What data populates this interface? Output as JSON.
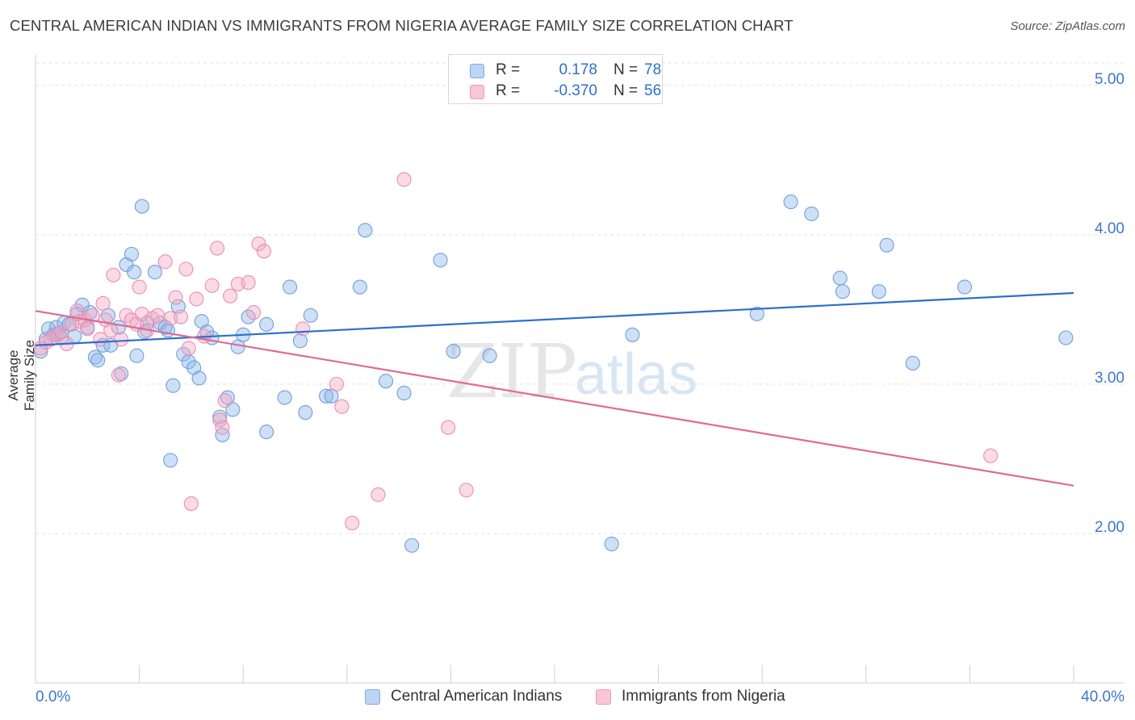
{
  "title": "CENTRAL AMERICAN INDIAN VS IMMIGRANTS FROM NIGERIA AVERAGE FAMILY SIZE CORRELATION CHART",
  "source": "Source: ZipAtlas.com",
  "watermark": {
    "part1": "ZIP",
    "part2": "atlas"
  },
  "legend_top": {
    "rows": [
      {
        "r_label": "R =",
        "r_value": "0.178",
        "n_label": "N =",
        "n_value": "78"
      },
      {
        "r_label": "R =",
        "r_value": "-0.370",
        "n_label": "N =",
        "n_value": "56"
      }
    ]
  },
  "legend_bottom": {
    "items": [
      {
        "label": "Central American Indians"
      },
      {
        "label": "Immigrants from Nigeria"
      }
    ]
  },
  "chart_data": {
    "type": "scatter",
    "title": "CENTRAL AMERICAN INDIAN VS IMMIGRANTS FROM NIGERIA AVERAGE FAMILY SIZE CORRELATION CHART",
    "xlabel": "",
    "ylabel": "Average Family Size",
    "xlim": [
      0,
      40
    ],
    "ylim": [
      1.0,
      5.15
    ],
    "x_tick_labels": [
      "0.0%",
      "40.0%"
    ],
    "y_ticks": [
      2.0,
      3.0,
      4.0,
      5.0
    ],
    "y_tick_labels": [
      "2.00",
      "3.00",
      "4.00",
      "5.00"
    ],
    "grid": true,
    "legend_position": "bottom",
    "series": [
      {
        "name": "Central American Indians",
        "color": "#8bb6ea",
        "trend_color": "#2c6fcd",
        "r": 0.178,
        "n": 78,
        "trend": {
          "x": [
            0,
            40
          ],
          "y": [
            3.26,
            3.61
          ]
        },
        "points": [
          [
            0.2,
            3.22
          ],
          [
            0.4,
            3.3
          ],
          [
            0.5,
            3.37
          ],
          [
            0.7,
            3.33
          ],
          [
            0.8,
            3.38
          ],
          [
            0.9,
            3.34
          ],
          [
            1.0,
            3.31
          ],
          [
            1.1,
            3.41
          ],
          [
            1.3,
            3.4
          ],
          [
            1.5,
            3.32
          ],
          [
            1.6,
            3.47
          ],
          [
            1.8,
            3.53
          ],
          [
            2.0,
            3.38
          ],
          [
            2.1,
            3.48
          ],
          [
            2.3,
            3.18
          ],
          [
            2.4,
            3.16
          ],
          [
            2.6,
            3.26
          ],
          [
            2.9,
            3.26
          ],
          [
            2.8,
            3.46
          ],
          [
            3.2,
            3.38
          ],
          [
            3.3,
            3.07
          ],
          [
            3.5,
            3.8
          ],
          [
            3.7,
            3.87
          ],
          [
            3.8,
            3.75
          ],
          [
            3.9,
            3.19
          ],
          [
            4.1,
            4.19
          ],
          [
            4.2,
            3.35
          ],
          [
            4.3,
            3.41
          ],
          [
            4.6,
            3.75
          ],
          [
            4.8,
            3.41
          ],
          [
            5.0,
            3.38
          ],
          [
            5.1,
            3.36
          ],
          [
            5.2,
            2.49
          ],
          [
            5.3,
            2.99
          ],
          [
            5.5,
            3.52
          ],
          [
            5.7,
            3.2
          ],
          [
            5.9,
            3.15
          ],
          [
            6.1,
            3.11
          ],
          [
            6.3,
            3.04
          ],
          [
            6.4,
            3.42
          ],
          [
            6.6,
            3.35
          ],
          [
            6.8,
            3.31
          ],
          [
            7.1,
            2.78
          ],
          [
            7.2,
            2.66
          ],
          [
            7.4,
            2.91
          ],
          [
            7.6,
            2.83
          ],
          [
            7.8,
            3.25
          ],
          [
            8.0,
            3.33
          ],
          [
            8.2,
            3.45
          ],
          [
            8.9,
            3.4
          ],
          [
            8.9,
            2.68
          ],
          [
            9.6,
            2.91
          ],
          [
            9.8,
            3.65
          ],
          [
            10.2,
            3.29
          ],
          [
            10.4,
            2.81
          ],
          [
            10.6,
            3.46
          ],
          [
            11.2,
            2.92
          ],
          [
            11.4,
            2.92
          ],
          [
            12.5,
            3.65
          ],
          [
            12.7,
            4.03
          ],
          [
            13.5,
            3.02
          ],
          [
            14.2,
            2.94
          ],
          [
            14.5,
            1.92
          ],
          [
            15.6,
            3.83
          ],
          [
            16.1,
            3.22
          ],
          [
            17.5,
            3.19
          ],
          [
            22.2,
            1.93
          ],
          [
            23.0,
            3.33
          ],
          [
            27.8,
            3.47
          ],
          [
            29.1,
            4.22
          ],
          [
            29.9,
            4.14
          ],
          [
            31.0,
            3.71
          ],
          [
            31.1,
            3.62
          ],
          [
            32.5,
            3.62
          ],
          [
            32.8,
            3.93
          ],
          [
            33.8,
            3.14
          ],
          [
            35.8,
            3.65
          ],
          [
            39.7,
            3.31
          ]
        ]
      },
      {
        "name": "Immigrants from Nigeria",
        "color": "#f2a7c0",
        "trend_color": "#e06a95",
        "r": -0.37,
        "n": 56,
        "trend": {
          "x": [
            0,
            40
          ],
          "y": [
            3.49,
            2.32
          ]
        },
        "points": [
          [
            0.2,
            3.24
          ],
          [
            0.4,
            3.28
          ],
          [
            0.6,
            3.3
          ],
          [
            0.8,
            3.33
          ],
          [
            1.0,
            3.35
          ],
          [
            1.2,
            3.27
          ],
          [
            1.4,
            3.4
          ],
          [
            1.6,
            3.49
          ],
          [
            1.7,
            3.42
          ],
          [
            1.9,
            3.43
          ],
          [
            2.0,
            3.37
          ],
          [
            2.2,
            3.46
          ],
          [
            2.5,
            3.3
          ],
          [
            2.6,
            3.54
          ],
          [
            2.7,
            3.43
          ],
          [
            2.9,
            3.36
          ],
          [
            3.0,
            3.73
          ],
          [
            3.2,
            3.06
          ],
          [
            3.3,
            3.3
          ],
          [
            3.5,
            3.46
          ],
          [
            3.7,
            3.43
          ],
          [
            3.9,
            3.4
          ],
          [
            4.0,
            3.65
          ],
          [
            4.1,
            3.47
          ],
          [
            4.3,
            3.36
          ],
          [
            4.5,
            3.44
          ],
          [
            4.7,
            3.46
          ],
          [
            5.0,
            3.82
          ],
          [
            5.2,
            3.44
          ],
          [
            5.4,
            3.58
          ],
          [
            5.6,
            3.45
          ],
          [
            5.8,
            3.77
          ],
          [
            5.9,
            3.24
          ],
          [
            6.0,
            2.2
          ],
          [
            6.2,
            3.57
          ],
          [
            6.5,
            3.32
          ],
          [
            6.8,
            3.66
          ],
          [
            7.0,
            3.91
          ],
          [
            7.1,
            2.76
          ],
          [
            7.2,
            2.71
          ],
          [
            7.3,
            2.89
          ],
          [
            7.5,
            3.59
          ],
          [
            7.8,
            3.67
          ],
          [
            8.2,
            3.68
          ],
          [
            8.4,
            3.48
          ],
          [
            8.6,
            3.94
          ],
          [
            8.8,
            3.89
          ],
          [
            10.3,
            3.37
          ],
          [
            11.6,
            3.0
          ],
          [
            11.8,
            2.85
          ],
          [
            12.2,
            2.07
          ],
          [
            13.2,
            2.26
          ],
          [
            14.2,
            4.37
          ],
          [
            15.9,
            2.71
          ],
          [
            16.6,
            2.29
          ],
          [
            36.8,
            2.52
          ]
        ]
      }
    ]
  }
}
